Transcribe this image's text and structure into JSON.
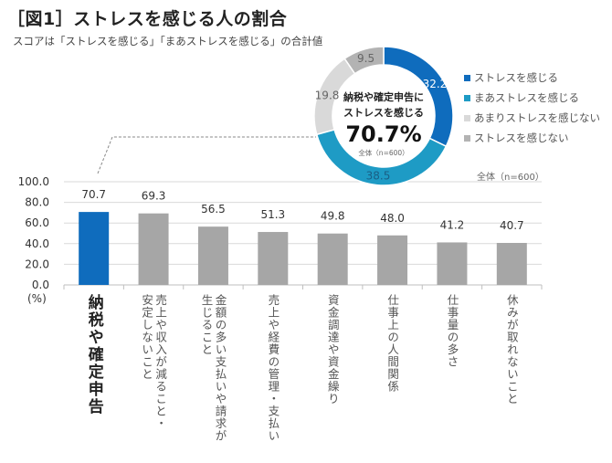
{
  "header": {
    "title": "［図1］ストレスを感じる人の割合",
    "subtitle": "スコアは「ストレスを感じる」「まあストレスを感じる」の合計値"
  },
  "colors": {
    "strong": "#0f6cbd",
    "moderate": "#1e9bc5",
    "little": "#d9d9d9",
    "none": "#b3b3b3",
    "highlight_bar": "#0f6cbd",
    "other_bar": "#a6a6a6",
    "grid": "#d9d9d9"
  },
  "chart_data": [
    {
      "type": "pie",
      "subtype": "donut",
      "title": "納税や確定申告にストレスを感じる",
      "center_label": {
        "line1": "納税や確定申告に",
        "line2": "ストレスを感じる",
        "value": "70.7%",
        "note": "全体（n=600）"
      },
      "categories": [
        "ストレスを感じる",
        "まあストレスを感じる",
        "あまりストレスを感じない",
        "ストレスを感じない"
      ],
      "values": [
        32.2,
        38.5,
        19.8,
        9.5
      ],
      "value_labels": [
        "32.2",
        "38.5",
        "19.8",
        "9.5"
      ],
      "legend": [
        "ストレスを感じる",
        "まあストレスを感じる",
        "あまりストレスを感じない",
        "ストレスを感じない"
      ],
      "legend_position": "right"
    },
    {
      "type": "bar",
      "note": "全体（n=600）",
      "ylabel": "(%)",
      "ylim": [
        0,
        100
      ],
      "yticks": [
        "100.0",
        "80.0",
        "60.0",
        "40.0",
        "20.0",
        "0.0"
      ],
      "ytick_values": [
        100,
        80,
        60,
        40,
        20,
        0
      ],
      "grid": true,
      "highlight_index": 0,
      "categories": [
        "納税や確定申告",
        "売上や収入が減ること・\n安定しないこと",
        "金額の多い支払いや請求が\n生じること",
        "売上や経費の管理・支払い",
        "資金調達や資金繰り",
        "仕事上の人間関係",
        "仕事量の多さ",
        "休みが取れないこと"
      ],
      "values": [
        70.7,
        69.3,
        56.5,
        51.3,
        49.8,
        48.0,
        41.2,
        40.7
      ],
      "value_labels": [
        "70.7",
        "69.3",
        "56.5",
        "51.3",
        "49.8",
        "48.0",
        "41.2",
        "40.7"
      ]
    }
  ]
}
